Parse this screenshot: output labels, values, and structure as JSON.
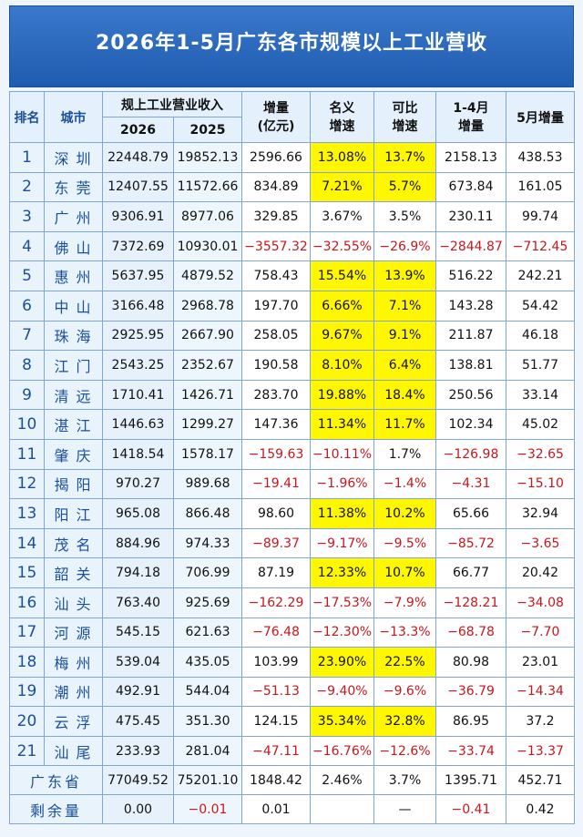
{
  "header": {
    "title": "2026年1-5月广东各市规模以上工业营收"
  },
  "table": {
    "columns": {
      "rank": "排名",
      "city": "城市",
      "revenue": "规上工业营业收入",
      "year_2026": "2026",
      "year_2025": "2025",
      "increase": [
        "增量",
        "(亿元)"
      ],
      "nominal": [
        "名义",
        "增速"
      ],
      "comparable": [
        "可比",
        "增速"
      ],
      "jan_apr": [
        "1-4月",
        "增量"
      ],
      "may": "5月增量"
    },
    "rows": [
      {
        "rank": "1",
        "city": "深圳",
        "values": [
          "22448.79",
          "19852.13",
          "2596.66",
          "13.08%",
          "13.7%",
          "2158.13",
          "438.53"
        ],
        "highlight": true
      },
      {
        "rank": "2",
        "city": "东莞",
        "values": [
          "12407.55",
          "11572.66",
          "834.89",
          "7.21%",
          "5.7%",
          "673.84",
          "161.05"
        ],
        "highlight": true
      },
      {
        "rank": "3",
        "city": "广州",
        "values": [
          "9306.91",
          "8977.06",
          "329.85",
          "3.67%",
          "3.5%",
          "230.11",
          "99.74"
        ],
        "highlight": false
      },
      {
        "rank": "4",
        "city": "佛山",
        "values": [
          "7372.69",
          "10930.01",
          "−3557.32",
          "−32.55%",
          "−26.9%",
          "−2844.87",
          "−712.45"
        ],
        "highlight": false
      },
      {
        "rank": "5",
        "city": "惠州",
        "values": [
          "5637.95",
          "4879.52",
          "758.43",
          "15.54%",
          "13.9%",
          "516.22",
          "242.21"
        ],
        "highlight": true
      },
      {
        "rank": "6",
        "city": "中山",
        "values": [
          "3166.48",
          "2968.78",
          "197.70",
          "6.66%",
          "7.1%",
          "143.28",
          "54.42"
        ],
        "highlight": true
      },
      {
        "rank": "7",
        "city": "珠海",
        "values": [
          "2925.95",
          "2667.90",
          "258.05",
          "9.67%",
          "9.1%",
          "211.87",
          "46.18"
        ],
        "highlight": true
      },
      {
        "rank": "8",
        "city": "江门",
        "values": [
          "2543.25",
          "2352.67",
          "190.58",
          "8.10%",
          "6.4%",
          "138.81",
          "51.77"
        ],
        "highlight": true
      },
      {
        "rank": "9",
        "city": "清远",
        "values": [
          "1710.41",
          "1426.71",
          "283.70",
          "19.88%",
          "18.4%",
          "250.56",
          "33.14"
        ],
        "highlight": true
      },
      {
        "rank": "10",
        "city": "湛江",
        "values": [
          "1446.63",
          "1299.27",
          "147.36",
          "11.34%",
          "11.7%",
          "102.34",
          "45.02"
        ],
        "highlight": true
      },
      {
        "rank": "11",
        "city": "肇庆",
        "values": [
          "1418.54",
          "1578.17",
          "−159.63",
          "−10.11%",
          "1.7%",
          "−126.98",
          "−32.65"
        ],
        "highlight": false
      },
      {
        "rank": "12",
        "city": "揭阳",
        "values": [
          "970.27",
          "989.68",
          "−19.41",
          "−1.96%",
          "−1.4%",
          "−4.31",
          "−15.10"
        ],
        "highlight": false
      },
      {
        "rank": "13",
        "city": "阳江",
        "values": [
          "965.08",
          "866.48",
          "98.60",
          "11.38%",
          "10.2%",
          "65.66",
          "32.94"
        ],
        "highlight": true
      },
      {
        "rank": "14",
        "city": "茂名",
        "values": [
          "884.96",
          "974.33",
          "−89.37",
          "−9.17%",
          "−9.5%",
          "−85.72",
          "−3.65"
        ],
        "highlight": false
      },
      {
        "rank": "15",
        "city": "韶关",
        "values": [
          "794.18",
          "706.99",
          "87.19",
          "12.33%",
          "10.7%",
          "66.77",
          "20.42"
        ],
        "highlight": true
      },
      {
        "rank": "16",
        "city": "汕头",
        "values": [
          "763.40",
          "925.69",
          "−162.29",
          "−17.53%",
          "−7.9%",
          "−128.21",
          "−34.08"
        ],
        "highlight": false
      },
      {
        "rank": "17",
        "city": "河源",
        "values": [
          "545.15",
          "621.63",
          "−76.48",
          "−12.30%",
          "−13.3%",
          "−68.78",
          "−7.70"
        ],
        "highlight": false
      },
      {
        "rank": "18",
        "city": "梅州",
        "values": [
          "539.04",
          "435.05",
          "103.99",
          "23.90%",
          "22.5%",
          "80.98",
          "23.01"
        ],
        "highlight": true
      },
      {
        "rank": "19",
        "city": "潮州",
        "values": [
          "492.91",
          "544.04",
          "−51.13",
          "−9.40%",
          "−9.6%",
          "−36.79",
          "−14.34"
        ],
        "highlight": false
      },
      {
        "rank": "20",
        "city": "云浮",
        "values": [
          "475.45",
          "351.30",
          "124.15",
          "35.34%",
          "32.8%",
          "86.95",
          "37.2"
        ],
        "highlight": true
      },
      {
        "rank": "21",
        "city": "汕尾",
        "values": [
          "233.93",
          "281.04",
          "−47.11",
          "−16.76%",
          "−12.6%",
          "−33.74",
          "−13.37"
        ],
        "highlight": false
      }
    ],
    "totals": [
      {
        "label": "广东省",
        "values": [
          "77049.52",
          "75201.10",
          "1848.42",
          "2.46%",
          "3.7%",
          "1395.71",
          "452.71"
        ]
      },
      {
        "label": "剩余量",
        "values": [
          "0.00",
          "−0.01",
          "0.01",
          null,
          "—",
          "−0.41",
          "0.42"
        ]
      }
    ]
  }
}
